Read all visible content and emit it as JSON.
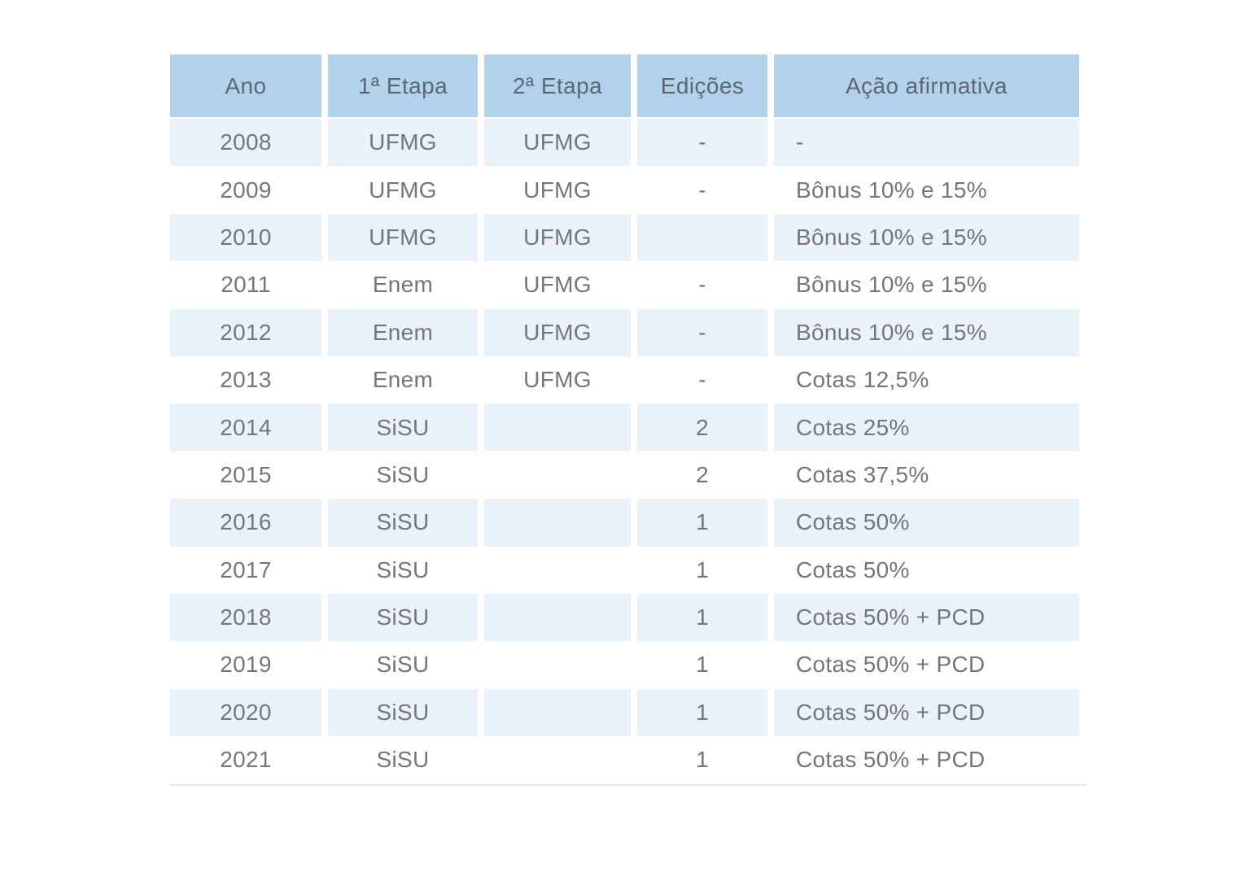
{
  "chart_data": {
    "type": "table",
    "columns": [
      "Ano",
      "1ª Etapa",
      "2ª Etapa",
      "Edições",
      "Ação afirmativa"
    ],
    "rows": [
      [
        "2008",
        "UFMG",
        "UFMG",
        "-",
        "-"
      ],
      [
        "2009",
        "UFMG",
        "UFMG",
        "-",
        "Bônus 10% e 15%"
      ],
      [
        "2010",
        "UFMG",
        "UFMG",
        "",
        "Bônus 10% e 15%"
      ],
      [
        "2011",
        "Enem",
        "UFMG",
        "-",
        "Bônus 10% e 15%"
      ],
      [
        "2012",
        "Enem",
        "UFMG",
        "-",
        "Bônus 10% e 15%"
      ],
      [
        "2013",
        "Enem",
        "UFMG",
        "-",
        "Cotas 12,5%"
      ],
      [
        "2014",
        "SiSU",
        "",
        "2",
        "Cotas 25%"
      ],
      [
        "2015",
        "SiSU",
        "",
        "2",
        "Cotas 37,5%"
      ],
      [
        "2016",
        "SiSU",
        "",
        "1",
        "Cotas 50%"
      ],
      [
        "2017",
        "SiSU",
        "",
        "1",
        "Cotas 50%"
      ],
      [
        "2018",
        "SiSU",
        "",
        "1",
        "Cotas 50% + PCD"
      ],
      [
        "2019",
        "SiSU",
        "",
        "1",
        "Cotas 50% + PCD"
      ],
      [
        "2020",
        "SiSU",
        "",
        "1",
        "Cotas 50% + PCD"
      ],
      [
        "2021",
        "SiSU",
        "",
        "1",
        "Cotas 50% + PCD"
      ]
    ],
    "layout": {
      "zebra": "rows 2008, 2010, 2012, 2014, 2016, 2018, 2020 shaded light blue; others white",
      "last_column_alignment": "left",
      "other_columns_alignment": "center",
      "grid": "off",
      "legend_position": "none"
    }
  },
  "colors": {
    "header_bg": "#b2d1ea",
    "row_alt_bg": "#e9f1f9",
    "header_text": "#5d6771",
    "body_text": "#74767a",
    "divider": "#e9e9e9",
    "page_bg": "#ffffff"
  }
}
